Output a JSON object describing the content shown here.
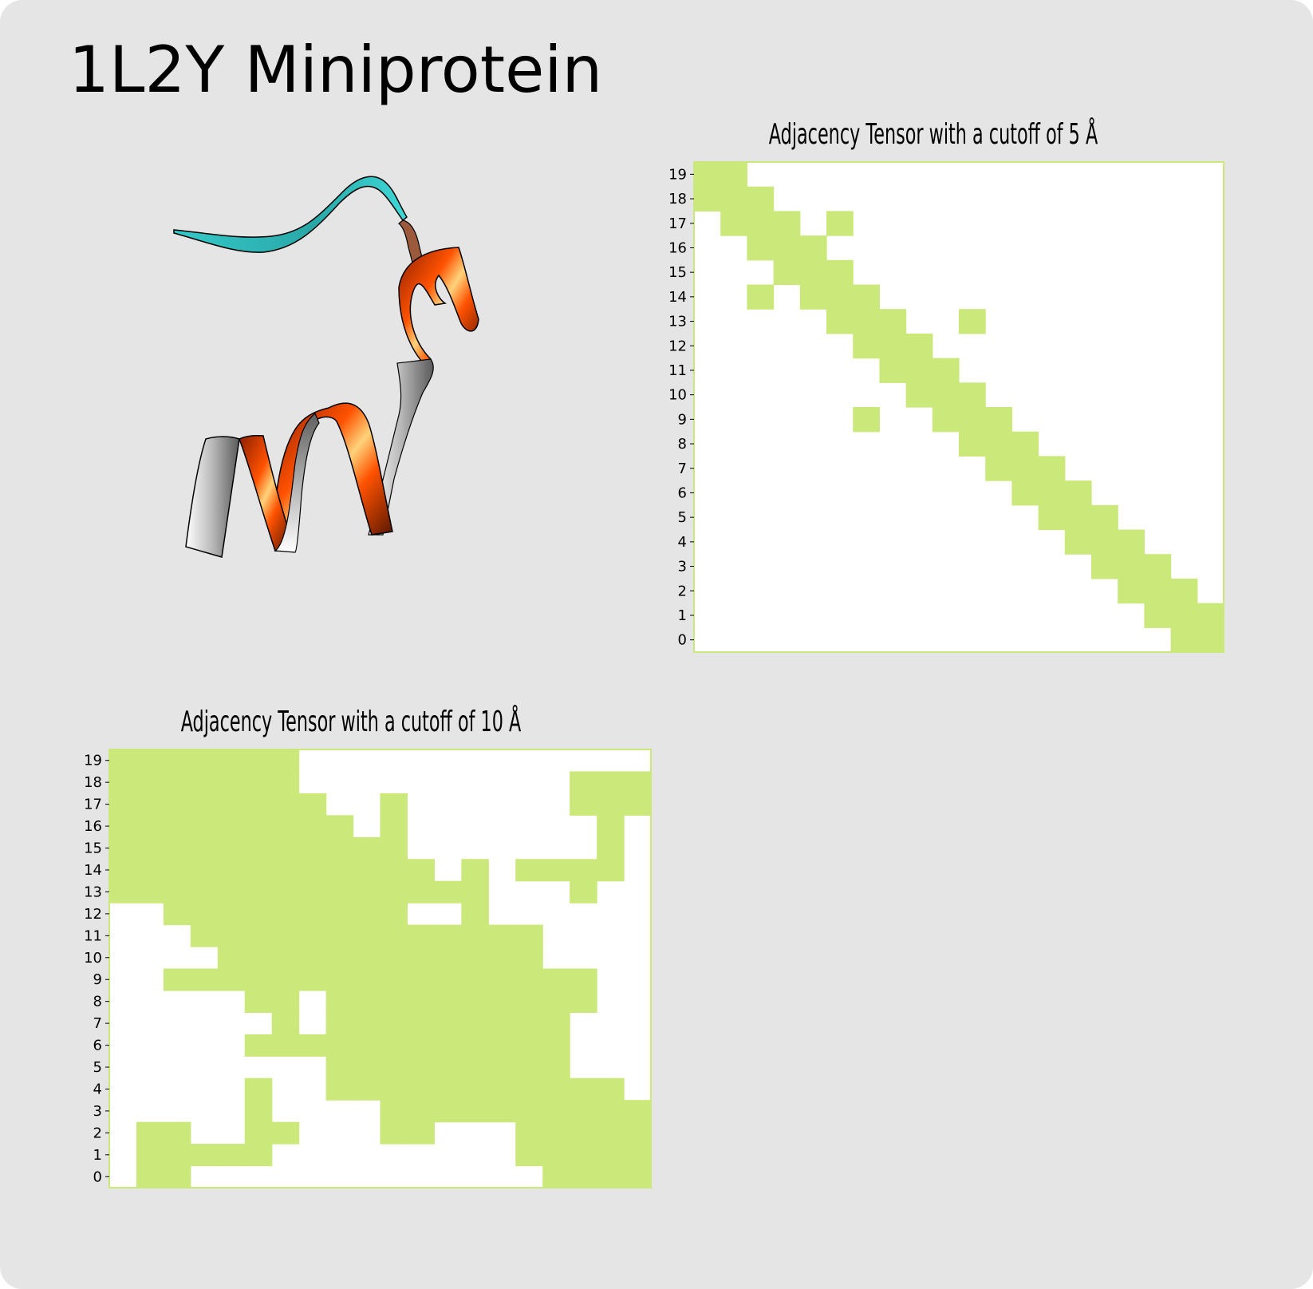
{
  "page": {
    "title": "1L2Y Miniprotein"
  },
  "colors": {
    "cell_fill": "#cbe97a",
    "frame": "#cbe97a",
    "background": "#e5e5e5",
    "matrix_bg": "#ffffff",
    "helix": "#ff4f00",
    "strand": "#3ccfcf",
    "loop": "#9c5a3c"
  },
  "chart_data": [
    {
      "type": "heatmap",
      "title": "Adjacency Tensor with a cutoff of 5 Å",
      "xlabel": "",
      "ylabel": "",
      "x_ticks_shown": false,
      "y_ticks": [
        "0",
        "1",
        "2",
        "3",
        "4",
        "5",
        "6",
        "7",
        "8",
        "9",
        "10",
        "11",
        "12",
        "13",
        "14",
        "15",
        "16",
        "17",
        "18",
        "19"
      ],
      "n": 20,
      "grid": false,
      "adjacent_pairs_row_col": [
        [
          19,
          0
        ],
        [
          19,
          1
        ],
        [
          18,
          0
        ],
        [
          18,
          1
        ],
        [
          18,
          2
        ],
        [
          17,
          1
        ],
        [
          17,
          2
        ],
        [
          17,
          3
        ],
        [
          17,
          5
        ],
        [
          16,
          2
        ],
        [
          16,
          3
        ],
        [
          16,
          4
        ],
        [
          15,
          3
        ],
        [
          15,
          4
        ],
        [
          15,
          5
        ],
        [
          14,
          2
        ],
        [
          14,
          4
        ],
        [
          14,
          5
        ],
        [
          14,
          6
        ],
        [
          13,
          5
        ],
        [
          13,
          6
        ],
        [
          13,
          7
        ],
        [
          13,
          10
        ],
        [
          12,
          6
        ],
        [
          12,
          7
        ],
        [
          12,
          8
        ],
        [
          11,
          7
        ],
        [
          11,
          8
        ],
        [
          11,
          9
        ],
        [
          10,
          8
        ],
        [
          10,
          9
        ],
        [
          10,
          10
        ],
        [
          9,
          6
        ],
        [
          9,
          9
        ],
        [
          9,
          10
        ],
        [
          9,
          11
        ],
        [
          8,
          10
        ],
        [
          8,
          11
        ],
        [
          8,
          12
        ],
        [
          7,
          11
        ],
        [
          7,
          12
        ],
        [
          7,
          13
        ],
        [
          6,
          12
        ],
        [
          6,
          13
        ],
        [
          6,
          14
        ],
        [
          5,
          13
        ],
        [
          5,
          14
        ],
        [
          5,
          15
        ],
        [
          4,
          14
        ],
        [
          4,
          15
        ],
        [
          4,
          16
        ],
        [
          3,
          15
        ],
        [
          3,
          16
        ],
        [
          3,
          17
        ],
        [
          2,
          16
        ],
        [
          2,
          17
        ],
        [
          2,
          18
        ],
        [
          1,
          17
        ],
        [
          1,
          18
        ],
        [
          1,
          19
        ],
        [
          0,
          18
        ],
        [
          0,
          19
        ]
      ]
    },
    {
      "type": "heatmap",
      "title": "Adjacency Tensor with a cutoff of 10 Å",
      "xlabel": "",
      "ylabel": "",
      "x_ticks_shown": false,
      "y_ticks": [
        "0",
        "1",
        "2",
        "3",
        "4",
        "5",
        "6",
        "7",
        "8",
        "9",
        "10",
        "11",
        "12",
        "13",
        "14",
        "15",
        "16",
        "17",
        "18",
        "19"
      ],
      "n": 20,
      "grid": false,
      "adjacent_ranges_by_row": {
        "19": [
          [
            0,
            6
          ]
        ],
        "18": [
          [
            0,
            6
          ],
          [
            17,
            19
          ]
        ],
        "17": [
          [
            0,
            7
          ],
          [
            10,
            10
          ],
          [
            17,
            19
          ]
        ],
        "16": [
          [
            0,
            8
          ],
          [
            10,
            10
          ],
          [
            18,
            18
          ]
        ],
        "15": [
          [
            0,
            10
          ],
          [
            18,
            18
          ]
        ],
        "14": [
          [
            0,
            11
          ],
          [
            13,
            13
          ],
          [
            15,
            18
          ]
        ],
        "13": [
          [
            0,
            12
          ],
          [
            13,
            13
          ],
          [
            17,
            17
          ]
        ],
        "12": [
          [
            2,
            10
          ],
          [
            13,
            13
          ]
        ],
        "11": [
          [
            3,
            15
          ]
        ],
        "10": [
          [
            4,
            15
          ]
        ],
        "9": [
          [
            2,
            17
          ]
        ],
        "8": [
          [
            5,
            6
          ],
          [
            8,
            17
          ]
        ],
        "7": [
          [
            6,
            6
          ],
          [
            8,
            16
          ]
        ],
        "6": [
          [
            5,
            16
          ]
        ],
        "5": [
          [
            8,
            16
          ]
        ],
        "4": [
          [
            5,
            5
          ],
          [
            8,
            18
          ]
        ],
        "3": [
          [
            5,
            5
          ],
          [
            10,
            19
          ]
        ],
        "2": [
          [
            1,
            2
          ],
          [
            5,
            6
          ],
          [
            10,
            11
          ],
          [
            15,
            19
          ]
        ],
        "1": [
          [
            1,
            5
          ],
          [
            15,
            19
          ]
        ],
        "0": [
          [
            1,
            2
          ],
          [
            16,
            19
          ]
        ]
      }
    }
  ]
}
